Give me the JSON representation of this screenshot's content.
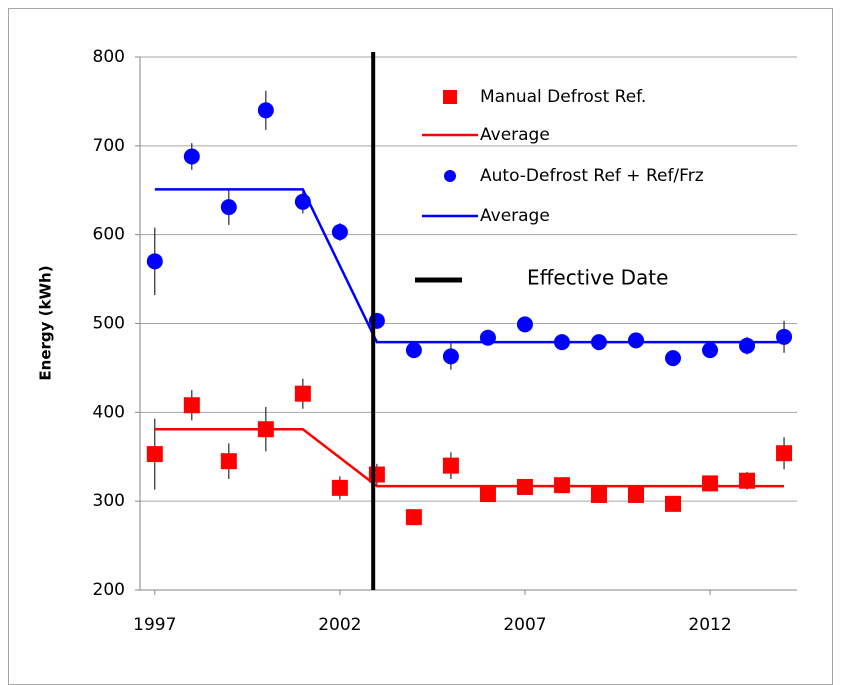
{
  "chart_data": {
    "type": "scatter",
    "y_label": "Energy (kWh)",
    "xlim": [
      1996.6,
      2014.35
    ],
    "xticks": [
      1997,
      2002,
      2007,
      2012
    ],
    "ylim": [
      200,
      800
    ],
    "yticks": [
      200,
      300,
      400,
      500,
      600,
      700,
      800
    ],
    "grid": true,
    "legend": "top-right",
    "series": [
      {
        "name": "Manual Defrost Ref.",
        "color": "#ff0000",
        "marker": "square",
        "x": [
          1997,
          1998,
          1999,
          2000,
          2001,
          2002,
          2003,
          2004,
          2005,
          2006,
          2007,
          2008,
          2009,
          2010,
          2011,
          2012,
          2013,
          2014
        ],
        "values": [
          353,
          408,
          345,
          381,
          421,
          315,
          330,
          282,
          340,
          308,
          316,
          318,
          307,
          307,
          297,
          320,
          323,
          354
        ],
        "errors": [
          40,
          17,
          20,
          25,
          17,
          13,
          12,
          8,
          15,
          5,
          5,
          5,
          5,
          5,
          5,
          5,
          10,
          18
        ]
      },
      {
        "name": "Average",
        "color": "#ff0000",
        "marker": "line",
        "x": [
          1997,
          2001,
          2003,
          2014
        ],
        "values": [
          381,
          381,
          317,
          317
        ]
      },
      {
        "name": "Auto-Defrost Ref + Ref/Frz",
        "color": "#0000ff",
        "marker": "circle",
        "x": [
          1997,
          1998,
          1999,
          2000,
          2001,
          2002,
          2003,
          2004,
          2005,
          2006,
          2007,
          2008,
          2009,
          2010,
          2011,
          2012,
          2013,
          2014
        ],
        "values": [
          570,
          688,
          631,
          740,
          637,
          603,
          503,
          470,
          463,
          484,
          499,
          479,
          479,
          481,
          461,
          470,
          475,
          485
        ],
        "errors": [
          38,
          15,
          20,
          22,
          13,
          10,
          8,
          8,
          15,
          8,
          5,
          5,
          5,
          5,
          5,
          5,
          10,
          18
        ]
      },
      {
        "name": "Average",
        "color": "#0000ff",
        "marker": "line",
        "x": [
          1997,
          2001,
          2003,
          2014
        ],
        "values": [
          651,
          651,
          479,
          479
        ]
      }
    ],
    "vlines": [
      {
        "name": "Effective Date",
        "x": 2002.9,
        "color": "#000000"
      }
    ]
  }
}
